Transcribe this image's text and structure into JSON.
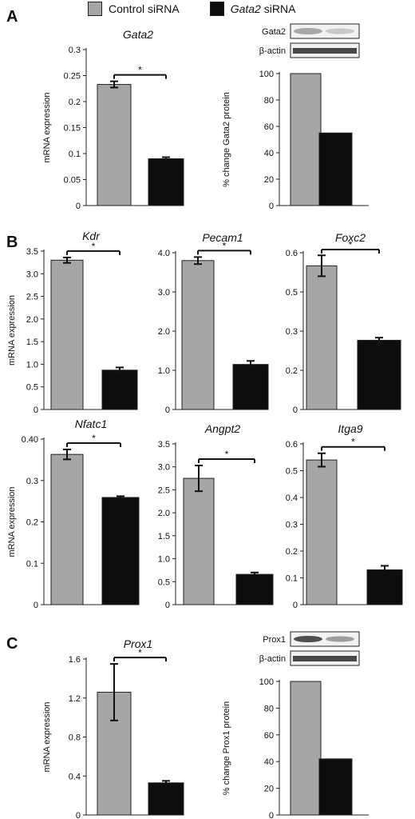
{
  "legend": {
    "control_label": "Control siRNA",
    "control_color": "#a6a6a6",
    "knockdown_label": "siRNA",
    "knockdown_gene": "Gata2",
    "knockdown_color": "#0d0d0d"
  },
  "panels": {
    "A": "A",
    "B": "B",
    "C": "C"
  },
  "blots": [
    {
      "labels": [
        "Gata2",
        "β-actin"
      ]
    },
    {
      "labels": [
        "Prox1",
        "β-actin"
      ]
    }
  ],
  "chart_data": [
    {
      "type": "bar",
      "panel": "A",
      "title": "Gata2",
      "ylabel": "mRNA expression",
      "categories": [
        "Control siRNA",
        "Gata2 siRNA"
      ],
      "values": [
        0.233,
        0.09
      ],
      "errors": [
        0.006,
        0.003
      ],
      "ylim": [
        0,
        0.3
      ],
      "ticks": [
        "0",
        "0.05",
        "0.1",
        "0.15",
        "0.2",
        "0.25",
        "0.3"
      ],
      "significance": "*"
    },
    {
      "type": "bar",
      "panel": "A",
      "title": "",
      "ylabel": "% change Gata2 protein",
      "categories": [
        "Control siRNA",
        "Gata2 siRNA"
      ],
      "values": [
        100,
        55
      ],
      "errors": [
        0,
        0
      ],
      "ylim": [
        0,
        100
      ],
      "ticks": [
        "0",
        "20",
        "40",
        "60",
        "80",
        "100"
      ],
      "significance": ""
    },
    {
      "type": "bar",
      "panel": "B",
      "title": "Kdr",
      "ylabel": "mRNA expression",
      "categories": [
        "Control siRNA",
        "Gata2 siRNA"
      ],
      "values": [
        3.3,
        0.87
      ],
      "errors": [
        0.06,
        0.06
      ],
      "ylim": [
        0,
        3.5
      ],
      "ticks": [
        "0",
        "0.5",
        "1.0",
        "1.5",
        "2.0",
        "2.5",
        "3.0",
        "3.5"
      ],
      "significance": "*"
    },
    {
      "type": "bar",
      "panel": "B",
      "title": "Pecam1",
      "ylabel": "",
      "categories": [
        "Control siRNA",
        "Gata2 siRNA"
      ],
      "values": [
        3.8,
        1.15
      ],
      "errors": [
        0.09,
        0.09
      ],
      "ylim": [
        0,
        4
      ],
      "ticks": [
        "0",
        "1.0",
        "2.0",
        "3.0",
        "4.0"
      ],
      "significance": "*"
    },
    {
      "type": "bar",
      "panel": "B",
      "title": "Foxc2",
      "ylabel": "",
      "categories": [
        "Control siRNA",
        "Gata2 siRNA"
      ],
      "values": [
        0.55,
        0.265
      ],
      "errors": [
        0.04,
        0.01
      ],
      "ylim": [
        0,
        0.6
      ],
      "ticks": [
        "0",
        "0.2",
        "0.3",
        "0.5",
        "0.6"
      ],
      "significance": "*"
    },
    {
      "type": "bar",
      "panel": "B",
      "title": "Nfatc1",
      "ylabel": "mRNA expression",
      "categories": [
        "Control siRNA",
        "Gata2 siRNA"
      ],
      "values": [
        0.363,
        0.259
      ],
      "errors": [
        0.012,
        0.003
      ],
      "ylim": [
        0,
        0.4
      ],
      "ticks": [
        "0",
        "0.1",
        "0.2",
        "0.3",
        "0.40"
      ],
      "significance": "*"
    },
    {
      "type": "bar",
      "panel": "B",
      "title": "Angpt2",
      "ylabel": "",
      "categories": [
        "Control siRNA",
        "Gata2 siRNA"
      ],
      "values": [
        2.75,
        0.66
      ],
      "errors": [
        0.28,
        0.04
      ],
      "ylim": [
        0,
        3.5
      ],
      "ticks": [
        "0",
        "0.5",
        "1.0",
        "1.5",
        "2.0",
        "2.5",
        "3.0",
        "3.5"
      ],
      "significance": "*"
    },
    {
      "type": "bar",
      "panel": "B",
      "title": "Itga9",
      "ylabel": "",
      "categories": [
        "Control siRNA",
        "Gata2 siRNA"
      ],
      "values": [
        0.54,
        0.13
      ],
      "errors": [
        0.025,
        0.015
      ],
      "ylim": [
        0,
        0.6
      ],
      "ticks": [
        "0",
        "0.1",
        "0.2",
        "0.3",
        "0.4",
        "0.5",
        "0.6"
      ],
      "significance": "*"
    },
    {
      "type": "bar",
      "panel": "C",
      "title": "Prox1",
      "ylabel": "mRNA expression",
      "categories": [
        "Control siRNA",
        "Gata2 siRNA"
      ],
      "values": [
        1.26,
        0.33
      ],
      "errors": [
        0.29,
        0.02
      ],
      "ylim": [
        0,
        1.6
      ],
      "ticks": [
        "0",
        "0.4",
        "0.8",
        "1.2",
        "1.6"
      ],
      "significance": "*"
    },
    {
      "type": "bar",
      "panel": "C",
      "title": "",
      "ylabel": "% change Prox1 protein",
      "categories": [
        "Control siRNA",
        "Gata2 siRNA"
      ],
      "values": [
        100,
        42
      ],
      "errors": [
        0,
        0
      ],
      "ylim": [
        0,
        100
      ],
      "ticks": [
        "0",
        "20",
        "40",
        "60",
        "80",
        "100"
      ],
      "significance": ""
    }
  ]
}
